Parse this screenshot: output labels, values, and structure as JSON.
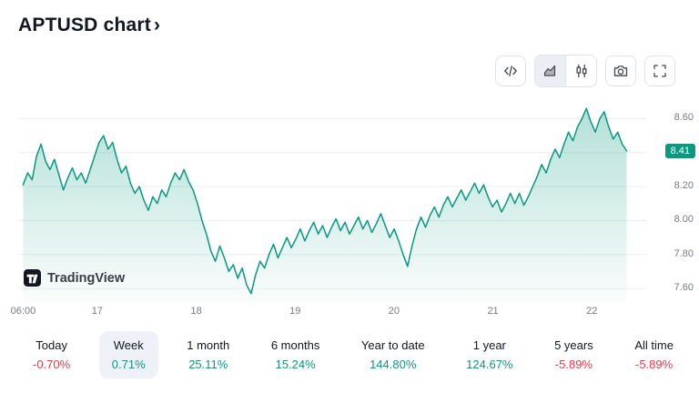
{
  "header": {
    "title": "APTUSD chart",
    "chevron": "›"
  },
  "toolbar": {
    "icons": [
      "code-icon",
      "area-chart-icon",
      "candles-icon",
      "camera-icon",
      "fullscreen-icon"
    ],
    "selected_style": "area"
  },
  "colors": {
    "up": "#089981",
    "down": "#f23645",
    "line": "#089981",
    "badge": "#089981"
  },
  "chart_data": {
    "type": "area",
    "title": "APTUSD chart",
    "symbol": "APTUSD",
    "watermark": "TradingView",
    "last_price": "8.41",
    "ylim": [
      7.52,
      8.72
    ],
    "xlim": [
      16.2,
      22.55
    ],
    "y_ticks": [
      8.6,
      8.4,
      8.2,
      8.0,
      7.8,
      7.6
    ],
    "x_ticks": [
      {
        "label": "06:00",
        "x": 16.25
      },
      {
        "label": "17",
        "x": 17
      },
      {
        "label": "18",
        "x": 18
      },
      {
        "label": "19",
        "x": 19
      },
      {
        "label": "20",
        "x": 20
      },
      {
        "label": "21",
        "x": 21
      },
      {
        "label": "22",
        "x": 22
      }
    ],
    "x_start": 16.25,
    "x_step": 0.0452,
    "values": [
      8.21,
      8.28,
      8.24,
      8.38,
      8.45,
      8.35,
      8.3,
      8.36,
      8.27,
      8.18,
      8.25,
      8.31,
      8.24,
      8.28,
      8.22,
      8.3,
      8.38,
      8.46,
      8.5,
      8.42,
      8.46,
      8.36,
      8.28,
      8.32,
      8.22,
      8.16,
      8.2,
      8.12,
      8.06,
      8.14,
      8.1,
      8.18,
      8.14,
      8.22,
      8.28,
      8.24,
      8.3,
      8.23,
      8.18,
      8.1,
      8.0,
      7.92,
      7.82,
      7.76,
      7.85,
      7.78,
      7.7,
      7.74,
      7.66,
      7.72,
      7.62,
      7.57,
      7.68,
      7.76,
      7.72,
      7.8,
      7.86,
      7.78,
      7.84,
      7.9,
      7.84,
      7.89,
      7.95,
      7.88,
      7.94,
      7.99,
      7.92,
      7.97,
      7.9,
      7.96,
      8.01,
      7.94,
      7.99,
      7.92,
      7.97,
      8.02,
      7.95,
      8.0,
      7.93,
      7.98,
      8.04,
      7.97,
      7.9,
      7.95,
      7.88,
      7.8,
      7.73,
      7.85,
      7.95,
      8.02,
      7.96,
      8.03,
      8.08,
      8.02,
      8.09,
      8.14,
      8.08,
      8.13,
      8.18,
      8.12,
      8.17,
      8.22,
      8.16,
      8.21,
      8.14,
      8.08,
      8.12,
      8.05,
      8.1,
      8.16,
      8.1,
      8.16,
      8.09,
      8.14,
      8.2,
      8.26,
      8.33,
      8.28,
      8.36,
      8.42,
      8.37,
      8.45,
      8.52,
      8.47,
      8.55,
      8.6,
      8.66,
      8.58,
      8.52,
      8.6,
      8.64,
      8.55,
      8.48,
      8.52,
      8.45,
      8.41
    ]
  },
  "ranges": [
    {
      "label": "Today",
      "change": "-0.70%",
      "direction": "down",
      "selected": false
    },
    {
      "label": "Week",
      "change": "0.71%",
      "direction": "up",
      "selected": true
    },
    {
      "label": "1 month",
      "change": "25.11%",
      "direction": "up",
      "selected": false
    },
    {
      "label": "6 months",
      "change": "15.24%",
      "direction": "up",
      "selected": false
    },
    {
      "label": "Year to date",
      "change": "144.80%",
      "direction": "up",
      "selected": false
    },
    {
      "label": "1 year",
      "change": "124.67%",
      "direction": "up",
      "selected": false
    },
    {
      "label": "5 years",
      "change": "-5.89%",
      "direction": "down",
      "selected": false
    },
    {
      "label": "All time",
      "change": "-5.89%",
      "direction": "down",
      "selected": false
    }
  ]
}
